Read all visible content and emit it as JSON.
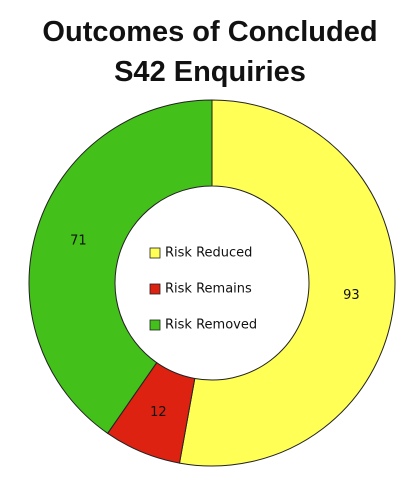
{
  "chart_data": {
    "type": "donut",
    "title": "Outcomes of Concluded S42 Enquiries",
    "categories": [
      "Risk Reduced",
      "Risk Remains",
      "Risk Removed"
    ],
    "values": [
      93,
      12,
      71
    ],
    "colors": [
      "#ffff55",
      "#dd2211",
      "#44c01a"
    ],
    "legend": "center"
  }
}
